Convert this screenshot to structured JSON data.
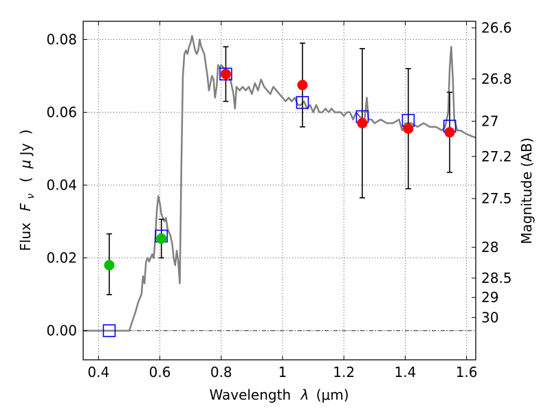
{
  "chart_data": {
    "type": "scatter",
    "xlabel_text": "Wavelength",
    "xlabel_symbol": "λ",
    "xlabel_unit": "(μm)",
    "ylabel_text": "Flux",
    "ylabel_symbol": "F",
    "ylabel_subscript": "ν",
    "ylabel_unit_open": "(",
    "ylabel_unit_mu": "μ",
    "ylabel_unit_rest": "Jy",
    "ylabel_unit_close": ")",
    "y2label": "Magnitude (AB)",
    "xlim": [
      0.35,
      1.63
    ],
    "ylim": [
      -0.008,
      0.085
    ],
    "x_ticks": [
      0.4,
      0.6,
      0.8,
      1.0,
      1.2,
      1.4,
      1.6
    ],
    "x_tick_labels": [
      "0.4",
      "0.6",
      "0.8",
      "1",
      "1.2",
      "1.4",
      "1.6"
    ],
    "y_ticks": [
      0.0,
      0.02,
      0.04,
      0.06,
      0.08
    ],
    "y_tick_labels": [
      "0.00",
      "0.02",
      "0.04",
      "0.06",
      "0.08"
    ],
    "mag_ticks": [
      26.6,
      26.8,
      27,
      27.2,
      27.5,
      28,
      28.5,
      29,
      30
    ],
    "mag_tick_labels": [
      "26.6",
      "26.8",
      "27",
      "27.2",
      "27.5",
      "28",
      "28.5",
      "29",
      "30"
    ],
    "zero_line": 0,
    "colors": {
      "template": "#808080",
      "green": "#00c000",
      "red": "#ff0000",
      "model": "#0000ff",
      "errorbar": "#000000"
    },
    "series": [
      {
        "name": "SED template",
        "kind": "line",
        "x": [
          0.35,
          0.49,
          0.5,
          0.52,
          0.53,
          0.54,
          0.545,
          0.55,
          0.555,
          0.56,
          0.565,
          0.57,
          0.575,
          0.58,
          0.585,
          0.59,
          0.595,
          0.6,
          0.605,
          0.61,
          0.615,
          0.62,
          0.625,
          0.63,
          0.635,
          0.64,
          0.645,
          0.65,
          0.655,
          0.66,
          0.665,
          0.67,
          0.675,
          0.68,
          0.685,
          0.69,
          0.695,
          0.7,
          0.705,
          0.71,
          0.715,
          0.72,
          0.725,
          0.73,
          0.735,
          0.74,
          0.745,
          0.75,
          0.755,
          0.76,
          0.765,
          0.77,
          0.775,
          0.78,
          0.785,
          0.79,
          0.795,
          0.8,
          0.81,
          0.82,
          0.83,
          0.84,
          0.845,
          0.85,
          0.86,
          0.87,
          0.88,
          0.89,
          0.9,
          0.91,
          0.92,
          0.93,
          0.94,
          0.95,
          0.96,
          0.97,
          0.98,
          0.99,
          1.0,
          1.01,
          1.02,
          1.03,
          1.04,
          1.05,
          1.06,
          1.07,
          1.08,
          1.09,
          1.1,
          1.11,
          1.12,
          1.13,
          1.14,
          1.15,
          1.16,
          1.17,
          1.18,
          1.19,
          1.2,
          1.21,
          1.22,
          1.23,
          1.24,
          1.25,
          1.26,
          1.265,
          1.27,
          1.275,
          1.28,
          1.29,
          1.3,
          1.32,
          1.34,
          1.36,
          1.38,
          1.39,
          1.4,
          1.42,
          1.44,
          1.46,
          1.48,
          1.5,
          1.52,
          1.53,
          1.54,
          1.545,
          1.55,
          1.555,
          1.56,
          1.57,
          1.58,
          1.6,
          1.63
        ],
        "y": [
          0.0,
          0.0,
          0.0,
          0.005,
          0.008,
          0.01,
          0.015,
          0.013,
          0.019,
          0.02,
          0.019,
          0.02,
          0.021,
          0.02,
          0.025,
          0.033,
          0.037,
          0.035,
          0.032,
          0.031,
          0.03,
          0.031,
          0.028,
          0.027,
          0.026,
          0.024,
          0.02,
          0.018,
          0.022,
          0.019,
          0.013,
          0.045,
          0.07,
          0.076,
          0.077,
          0.076,
          0.078,
          0.079,
          0.081,
          0.079,
          0.077,
          0.076,
          0.077,
          0.08,
          0.078,
          0.077,
          0.076,
          0.073,
          0.07,
          0.066,
          0.068,
          0.07,
          0.069,
          0.064,
          0.067,
          0.073,
          0.072,
          0.073,
          0.072,
          0.07,
          0.069,
          0.065,
          0.061,
          0.067,
          0.066,
          0.067,
          0.066,
          0.067,
          0.065,
          0.068,
          0.066,
          0.069,
          0.067,
          0.066,
          0.065,
          0.067,
          0.066,
          0.065,
          0.064,
          0.063,
          0.064,
          0.063,
          0.064,
          0.062,
          0.062,
          0.063,
          0.061,
          0.062,
          0.06,
          0.062,
          0.06,
          0.06,
          0.061,
          0.06,
          0.061,
          0.06,
          0.06,
          0.06,
          0.059,
          0.06,
          0.06,
          0.058,
          0.06,
          0.059,
          0.058,
          0.056,
          0.06,
          0.064,
          0.058,
          0.058,
          0.057,
          0.058,
          0.057,
          0.057,
          0.058,
          0.055,
          0.057,
          0.057,
          0.056,
          0.057,
          0.056,
          0.056,
          0.055,
          0.056,
          0.06,
          0.072,
          0.078,
          0.07,
          0.058,
          0.055,
          0.055,
          0.054,
          0.053
        ]
      },
      {
        "name": "observed (green)",
        "kind": "points_errorbars",
        "x": [
          0.435,
          0.605
        ],
        "y": [
          0.018,
          0.0253
        ],
        "yerr_low": [
          0.0081,
          0.0053
        ],
        "yerr_high": [
          0.0086,
          0.0053
        ]
      },
      {
        "name": "observed (red)",
        "kind": "points_errorbars",
        "x": [
          0.815,
          1.065,
          1.26,
          1.41,
          1.545
        ],
        "y": [
          0.0705,
          0.0675,
          0.057,
          0.0555,
          0.0545
        ],
        "yerr_low": [
          0.0075,
          0.0115,
          0.0205,
          0.0165,
          0.011
        ],
        "yerr_high": [
          0.0075,
          0.0115,
          0.0205,
          0.0165,
          0.011
        ]
      },
      {
        "name": "model photometry",
        "kind": "squares",
        "x": [
          0.435,
          0.605,
          0.815,
          1.065,
          1.26,
          1.41,
          1.545
        ],
        "y": [
          0.0,
          0.026,
          0.0705,
          0.0627,
          0.0588,
          0.0578,
          0.0562
        ]
      }
    ]
  }
}
